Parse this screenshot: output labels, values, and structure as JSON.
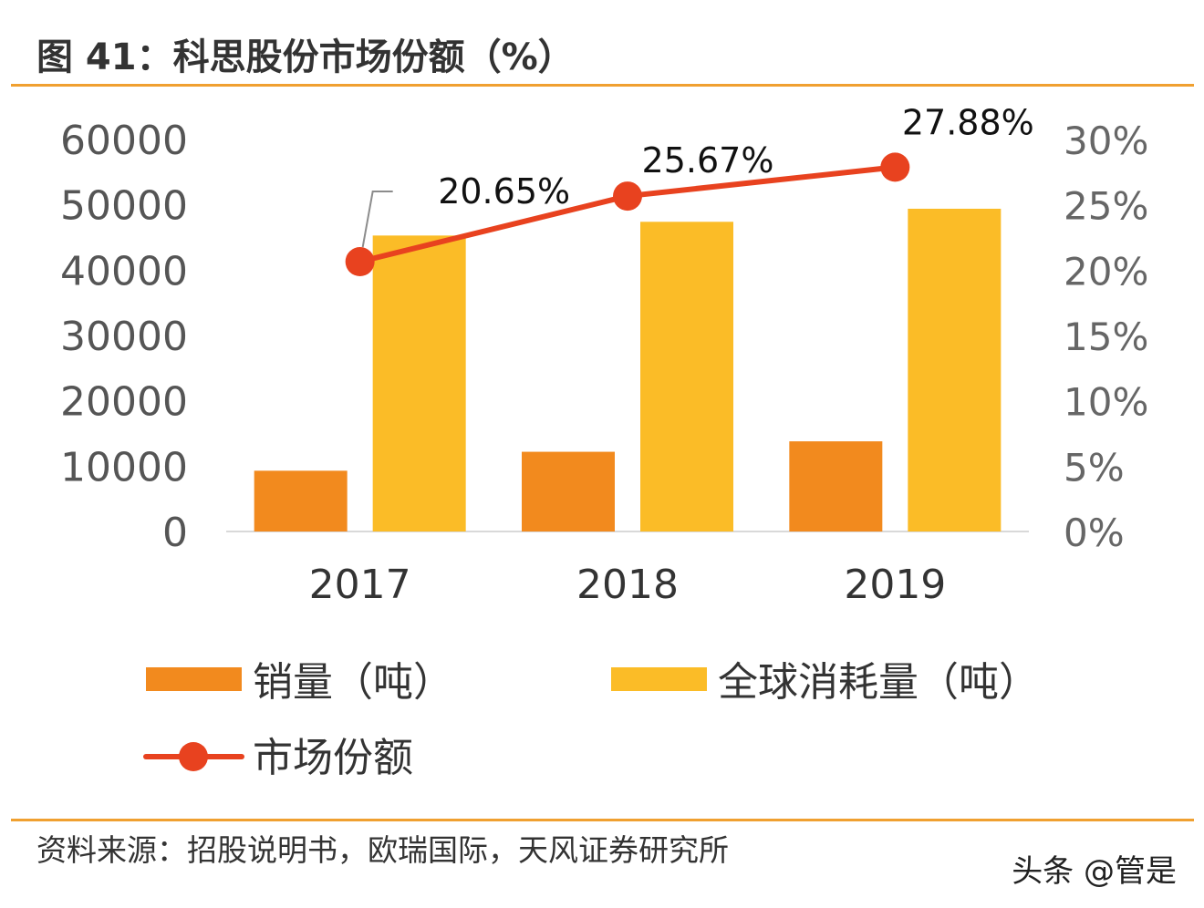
{
  "figure": {
    "title": "图 41：科思股份市场份额（%）",
    "source": "资料来源：招股说明书，欧瑞国际，天风证券研究所",
    "watermark": "头条 @管是"
  },
  "colors": {
    "rule": "#f0a030",
    "bar_sales": "#f28a1e",
    "bar_global": "#fbbc27",
    "line_share": "#e8421f"
  },
  "chart_data": {
    "type": "bar",
    "categories": [
      "2017",
      "2018",
      "2019"
    ],
    "series": [
      {
        "name": "销量（吨）",
        "type": "bar",
        "axis": "left",
        "color": "#f28a1e",
        "values": [
          9300,
          12200,
          13800
        ]
      },
      {
        "name": "全球消耗量（吨）",
        "type": "bar",
        "axis": "left",
        "color": "#fbbc27",
        "values": [
          45300,
          47400,
          49400
        ]
      },
      {
        "name": "市场份额",
        "type": "line",
        "axis": "right",
        "color": "#e8421f",
        "values": [
          20.65,
          25.67,
          27.88
        ],
        "labels": [
          "20.65%",
          "25.67%",
          "27.88%"
        ]
      }
    ],
    "y_left": {
      "lim": [
        0,
        60000
      ],
      "ticks": [
        "0",
        "10000",
        "20000",
        "30000",
        "40000",
        "50000",
        "60000"
      ]
    },
    "y_right": {
      "lim": [
        0,
        30
      ],
      "ticks": [
        "0%",
        "5%",
        "10%",
        "15%",
        "20%",
        "25%",
        "30%"
      ]
    },
    "grid": false,
    "legend_position": "bottom"
  }
}
